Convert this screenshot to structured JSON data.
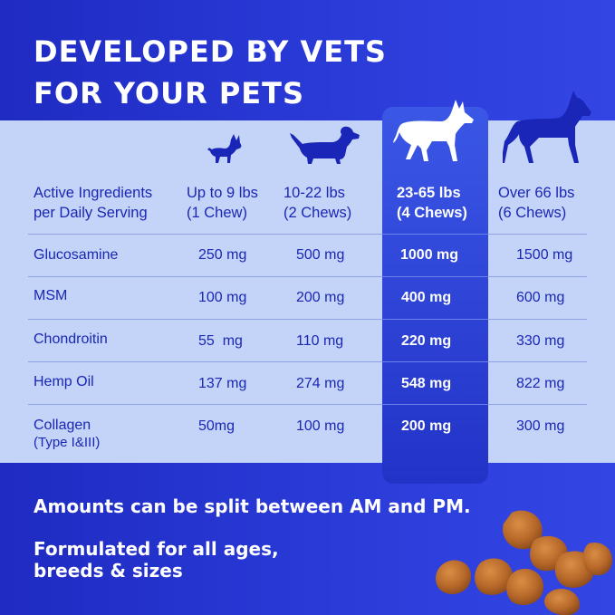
{
  "headline": [
    "DEVELOPED BY VETS",
    "FOR YOUR PETS"
  ],
  "table": {
    "header": {
      "ingredients": [
        "Active Ingredients",
        "per Daily Serving"
      ],
      "columns": [
        {
          "weight": "Up to 9 lbs",
          "chews": "(1 Chew)",
          "dog_icon": "small-chihuahua-icon"
        },
        {
          "weight": "10-22 lbs",
          "chews": "(2 Chews)",
          "dog_icon": "dachshund-icon"
        },
        {
          "weight": "23-65 lbs",
          "chews": "(4 Chews)",
          "dog_icon": "shepherd-icon"
        },
        {
          "weight": "Over 66 lbs",
          "chews": "(6 Chews)",
          "dog_icon": "great-dane-icon"
        }
      ],
      "highlighted_column": 2
    },
    "rows": [
      {
        "ingredient": [
          "Glucosamine"
        ],
        "values": [
          "250 mg",
          "500 mg",
          "1000 mg",
          "1500 mg"
        ]
      },
      {
        "ingredient": [
          "MSM"
        ],
        "values": [
          "100 mg",
          "200 mg",
          "400 mg",
          "600 mg"
        ]
      },
      {
        "ingredient": [
          "Chondroitin"
        ],
        "values": [
          "55  mg",
          "110 mg",
          "220 mg",
          "330 mg"
        ]
      },
      {
        "ingredient": [
          "Hemp Oil"
        ],
        "values": [
          "137 mg",
          "274 mg",
          "548 mg",
          "822 mg"
        ]
      },
      {
        "ingredient": [
          "Collagen",
          "(Type I&III)"
        ],
        "values": [
          "50mg",
          "100 mg",
          "200 mg",
          "300 mg"
        ]
      }
    ]
  },
  "footer": {
    "note": "Amounts can be split between AM and PM.",
    "tagline": [
      "Formulated for all ages,",
      "breeds & sizes"
    ]
  },
  "colors": {
    "background": "#2a3bd8",
    "table_panel": "#c4d4f8",
    "highlight": "#2a3fd6",
    "text_dark": "#1a27b3"
  }
}
